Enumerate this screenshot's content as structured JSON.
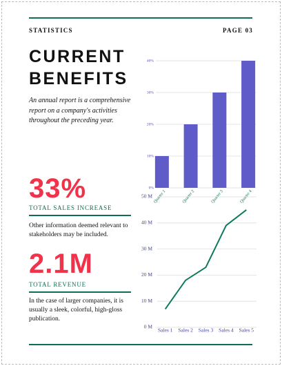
{
  "header": {
    "section": "STATISTICS",
    "page": "PAGE 03"
  },
  "title_lines": [
    "CURRENT",
    "BENEFITS"
  ],
  "intro": "An annual report is a comprehensive report on a company's activities throughout the preceding year.",
  "stats": [
    {
      "value": "33%",
      "label": "TOTAL SALES INCREASE",
      "text": "Other information deemed relevant to stakeholders may be included."
    },
    {
      "value": "2.1M",
      "label": "TOTAL REVENUE",
      "text": "In the case of larger companies, it is usually a sleek, colorful, high-gloss publication."
    }
  ],
  "chart_data": [
    {
      "type": "bar",
      "categories": [
        "Quarter 1",
        "Quarter 2",
        "Quarter 3",
        "Quarter 4"
      ],
      "values": [
        10,
        20,
        30,
        40
      ],
      "color": "#5f5bc9",
      "ylim": [
        0,
        40
      ],
      "yticks": [
        {
          "value": 0,
          "label": "0%"
        },
        {
          "value": 10,
          "label": "10%"
        },
        {
          "value": 20,
          "label": "20%"
        },
        {
          "value": 30,
          "label": "30%"
        },
        {
          "value": 40,
          "label": "40%"
        }
      ],
      "grid": true
    },
    {
      "type": "line",
      "categories": [
        "Sales 1",
        "Sales 2",
        "Sales 3",
        "Sales 4",
        "Sales 5"
      ],
      "values": [
        7,
        18,
        23,
        39,
        45
      ],
      "color": "#0d7a5f",
      "ylim": [
        0,
        50
      ],
      "yticks": [
        {
          "value": 0,
          "label": "0 M"
        },
        {
          "value": 10,
          "label": "10 M"
        },
        {
          "value": 20,
          "label": "20 M"
        },
        {
          "value": 30,
          "label": "30 M"
        },
        {
          "value": 40,
          "label": "40 M"
        },
        {
          "value": 50,
          "label": "50 M"
        }
      ],
      "grid": true
    }
  ]
}
